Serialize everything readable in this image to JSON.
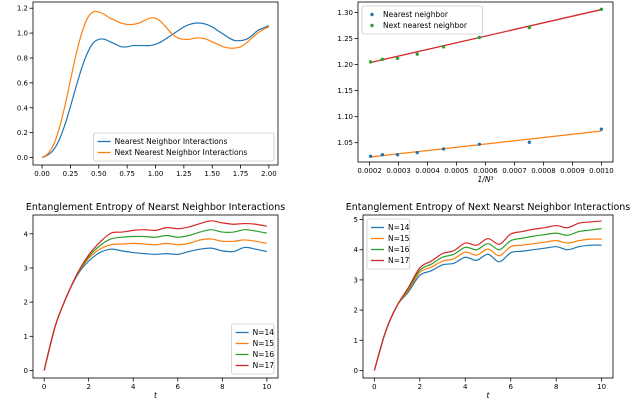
{
  "chart_data": [
    {
      "type": "line",
      "title": "",
      "xlabel": "",
      "ylabel": "",
      "xlim": [
        -0.08,
        2.08
      ],
      "ylim": [
        -0.06,
        1.25
      ],
      "xticks": [
        0.0,
        0.25,
        0.5,
        0.75,
        1.0,
        1.25,
        1.5,
        1.75,
        2.0
      ],
      "xtick_labels": [
        "0.00",
        "0.25",
        "0.50",
        "0.75",
        "1.00",
        "1.25",
        "1.50",
        "1.75",
        "2.00"
      ],
      "yticks": [
        0.0,
        0.2,
        0.4,
        0.6,
        0.8,
        1.0,
        1.2
      ],
      "ytick_labels": [
        "0.0",
        "0.2",
        "0.4",
        "0.6",
        "0.8",
        "1.0",
        "1.2"
      ],
      "legend_position": "lower-right",
      "series": [
        {
          "name": "Nearest Neighbor Interactions",
          "color": "#1f77b4",
          "x": [
            0.0,
            0.05,
            0.1,
            0.15,
            0.2,
            0.25,
            0.3,
            0.35,
            0.4,
            0.45,
            0.5,
            0.55,
            0.6,
            0.65,
            0.7,
            0.75,
            0.8,
            0.85,
            0.9,
            0.95,
            1.0,
            1.05,
            1.1,
            1.15,
            1.2,
            1.25,
            1.3,
            1.35,
            1.4,
            1.45,
            1.5,
            1.55,
            1.6,
            1.65,
            1.7,
            1.75,
            1.8,
            1.85,
            1.9,
            1.95,
            2.0
          ],
          "y": [
            0.0,
            0.02,
            0.06,
            0.14,
            0.26,
            0.41,
            0.57,
            0.72,
            0.84,
            0.92,
            0.95,
            0.95,
            0.93,
            0.91,
            0.89,
            0.89,
            0.9,
            0.9,
            0.9,
            0.9,
            0.91,
            0.93,
            0.96,
            0.99,
            1.02,
            1.05,
            1.07,
            1.08,
            1.08,
            1.07,
            1.05,
            1.02,
            0.99,
            0.96,
            0.94,
            0.94,
            0.95,
            0.98,
            1.02,
            1.04,
            1.06
          ]
        },
        {
          "name": "Next Nearest Neighbor Interactions",
          "color": "#ff7f0e",
          "x": [
            0.0,
            0.05,
            0.1,
            0.15,
            0.2,
            0.25,
            0.3,
            0.35,
            0.4,
            0.45,
            0.5,
            0.55,
            0.6,
            0.65,
            0.7,
            0.75,
            0.8,
            0.85,
            0.9,
            0.95,
            1.0,
            1.05,
            1.1,
            1.15,
            1.2,
            1.25,
            1.3,
            1.35,
            1.4,
            1.45,
            1.5,
            1.55,
            1.6,
            1.65,
            1.7,
            1.75,
            1.8,
            1.85,
            1.9,
            1.95,
            2.0
          ],
          "y": [
            0.0,
            0.03,
            0.1,
            0.23,
            0.41,
            0.62,
            0.83,
            1.0,
            1.12,
            1.17,
            1.17,
            1.15,
            1.12,
            1.1,
            1.08,
            1.07,
            1.07,
            1.08,
            1.1,
            1.12,
            1.12,
            1.09,
            1.04,
            0.99,
            0.96,
            0.95,
            0.95,
            0.96,
            0.96,
            0.95,
            0.93,
            0.91,
            0.89,
            0.88,
            0.88,
            0.89,
            0.92,
            0.96,
            1.0,
            1.03,
            1.05
          ]
        }
      ]
    },
    {
      "type": "scatter",
      "title": "",
      "xlabel": "1/N³",
      "ylabel": "",
      "xlim": [
        0.00016,
        0.00104
      ],
      "ylim": [
        1.013,
        1.32
      ],
      "xticks": [
        0.0002,
        0.0003,
        0.0004,
        0.0005,
        0.0006,
        0.0007,
        0.0008,
        0.0009,
        0.001
      ],
      "xtick_labels": [
        "0.0002",
        "0.0003",
        "0.0004",
        "0.0005",
        "0.0006",
        "0.0007",
        "0.0008",
        "0.0009",
        "0.0010"
      ],
      "yticks": [
        1.05,
        1.1,
        1.15,
        1.2,
        1.25,
        1.3
      ],
      "ytick_labels": [
        "1.05",
        "1.10",
        "1.15",
        "1.20",
        "1.25",
        "1.30"
      ],
      "legend_position": "upper-left",
      "series": [
        {
          "name": "Nearest neighbor",
          "color": "#1f77b4",
          "x": [
            0.0002035,
            0.0002441,
            0.0002963,
            0.0003644,
            0.0004552,
            0.0005787,
            0.0007513,
            0.001
          ],
          "y": [
            1.024,
            1.027,
            1.027,
            1.031,
            1.038,
            1.047,
            1.051,
            1.076
          ]
        },
        {
          "name": "Next nearest neighbor",
          "color": "#2ca02c",
          "x": [
            0.0002035,
            0.0002441,
            0.0002963,
            0.0003644,
            0.0004552,
            0.0005787,
            0.0007513,
            0.001
          ],
          "y": [
            1.205,
            1.21,
            1.212,
            1.22,
            1.234,
            1.252,
            1.271,
            1.306
          ]
        }
      ],
      "fit_lines": [
        {
          "color": "#ff7f0e",
          "x": [
            0.0002,
            0.001
          ],
          "y": [
            1.0225,
            1.0725
          ]
        },
        {
          "color": "#d62728",
          "x": [
            0.0002,
            0.001
          ],
          "y": [
            1.2035,
            1.3055
          ]
        }
      ]
    },
    {
      "type": "line",
      "title": "Entanglement Entropy of Nearst Neighbor Interactions",
      "xlabel": "t",
      "ylabel": "",
      "xlim": [
        -0.5,
        10.5
      ],
      "ylim": [
        -0.22,
        4.55
      ],
      "xticks": [
        0,
        2,
        4,
        6,
        8,
        10
      ],
      "xtick_labels": [
        "0",
        "2",
        "4",
        "6",
        "8",
        "10"
      ],
      "yticks": [
        0,
        1,
        2,
        3,
        4
      ],
      "ytick_labels": [
        "0",
        "1",
        "2",
        "3",
        "4"
      ],
      "legend_position": "lower-right",
      "series": [
        {
          "name": "N=14",
          "color": "#1f77b4",
          "x": [
            0,
            0.5,
            1,
            1.5,
            2,
            2.5,
            3,
            3.5,
            4,
            4.5,
            5,
            5.5,
            6,
            6.5,
            7,
            7.5,
            8,
            8.5,
            9,
            9.5,
            10
          ],
          "y": [
            0.0,
            1.3,
            2.15,
            2.8,
            3.2,
            3.45,
            3.55,
            3.5,
            3.45,
            3.42,
            3.4,
            3.42,
            3.4,
            3.48,
            3.55,
            3.58,
            3.5,
            3.48,
            3.6,
            3.55,
            3.48
          ]
        },
        {
          "name": "N=15",
          "color": "#ff7f0e",
          "x": [
            0,
            0.5,
            1,
            1.5,
            2,
            2.5,
            3,
            3.5,
            4,
            4.5,
            5,
            5.5,
            6,
            6.5,
            7,
            7.5,
            8,
            8.5,
            9,
            9.5,
            10
          ],
          "y": [
            0.0,
            1.3,
            2.15,
            2.82,
            3.28,
            3.55,
            3.68,
            3.7,
            3.72,
            3.7,
            3.68,
            3.72,
            3.68,
            3.72,
            3.82,
            3.85,
            3.78,
            3.78,
            3.82,
            3.78,
            3.72
          ]
        },
        {
          "name": "N=16",
          "color": "#2ca02c",
          "x": [
            0,
            0.5,
            1,
            1.5,
            2,
            2.5,
            3,
            3.5,
            4,
            4.5,
            5,
            5.5,
            6,
            6.5,
            7,
            7.5,
            8,
            8.5,
            9,
            9.5,
            10
          ],
          "y": [
            0.0,
            1.3,
            2.15,
            2.83,
            3.33,
            3.65,
            3.85,
            3.9,
            3.92,
            3.92,
            3.9,
            3.95,
            3.9,
            3.95,
            4.05,
            4.12,
            4.05,
            4.05,
            4.12,
            4.08,
            4.02
          ]
        },
        {
          "name": "N=17",
          "color": "#d62728",
          "x": [
            0,
            0.5,
            1,
            1.5,
            2,
            2.5,
            3,
            3.5,
            4,
            4.5,
            5,
            5.5,
            6,
            6.5,
            7,
            7.5,
            8,
            8.5,
            9,
            9.5,
            10
          ],
          "y": [
            0.0,
            1.3,
            2.15,
            2.85,
            3.38,
            3.75,
            4.02,
            4.05,
            4.1,
            4.12,
            4.1,
            4.18,
            4.15,
            4.2,
            4.3,
            4.38,
            4.32,
            4.28,
            4.3,
            4.28,
            4.22
          ]
        }
      ]
    },
    {
      "type": "line",
      "title": "Entanglement Entropy of Next Nearst Neighbor Interactions",
      "xlabel": "t",
      "ylabel": "",
      "xlim": [
        -0.5,
        10.5
      ],
      "ylim": [
        -0.25,
        5.15
      ],
      "xticks": [
        0,
        2,
        4,
        6,
        8,
        10
      ],
      "xtick_labels": [
        "0",
        "2",
        "4",
        "6",
        "8",
        "10"
      ],
      "yticks": [
        0,
        1,
        2,
        3,
        4,
        5
      ],
      "ytick_labels": [
        "0",
        "1",
        "2",
        "3",
        "4",
        "5"
      ],
      "legend_position": "upper-left",
      "series": [
        {
          "name": "N=14",
          "color": "#1f77b4",
          "x": [
            0,
            0.5,
            1,
            1.5,
            2,
            2.5,
            3,
            3.5,
            4,
            4.5,
            5,
            5.5,
            6,
            6.5,
            7,
            7.5,
            8,
            8.5,
            9,
            9.5,
            10
          ],
          "y": [
            0.0,
            1.3,
            2.15,
            2.6,
            3.15,
            3.3,
            3.5,
            3.55,
            3.75,
            3.65,
            3.85,
            3.6,
            3.9,
            3.95,
            4.0,
            4.05,
            4.1,
            4.0,
            4.1,
            4.15,
            4.15
          ]
        },
        {
          "name": "N=15",
          "color": "#ff7f0e",
          "x": [
            0,
            0.5,
            1,
            1.5,
            2,
            2.5,
            3,
            3.5,
            4,
            4.5,
            5,
            5.5,
            6,
            6.5,
            7,
            7.5,
            8,
            8.5,
            9,
            9.5,
            10
          ],
          "y": [
            0.0,
            1.3,
            2.15,
            2.65,
            3.25,
            3.42,
            3.62,
            3.7,
            3.92,
            3.82,
            4.02,
            3.8,
            4.1,
            4.15,
            4.2,
            4.25,
            4.3,
            4.22,
            4.3,
            4.35,
            4.35
          ]
        },
        {
          "name": "N=16",
          "color": "#2ca02c",
          "x": [
            0,
            0.5,
            1,
            1.5,
            2,
            2.5,
            3,
            3.5,
            4,
            4.5,
            5,
            5.5,
            6,
            6.5,
            7,
            7.5,
            8,
            8.5,
            9,
            9.5,
            10
          ],
          "y": [
            0.0,
            1.3,
            2.15,
            2.7,
            3.32,
            3.52,
            3.75,
            3.85,
            4.08,
            4.0,
            4.2,
            4.0,
            4.3,
            4.38,
            4.45,
            4.5,
            4.55,
            4.48,
            4.6,
            4.65,
            4.7
          ]
        },
        {
          "name": "N=17",
          "color": "#d62728",
          "x": [
            0,
            0.5,
            1,
            1.5,
            2,
            2.5,
            3,
            3.5,
            4,
            4.5,
            5,
            5.5,
            6,
            6.5,
            7,
            7.5,
            8,
            8.5,
            9,
            9.5,
            10
          ],
          "y": [
            0.0,
            1.3,
            2.15,
            2.75,
            3.4,
            3.62,
            3.87,
            3.97,
            4.22,
            4.15,
            4.37,
            4.18,
            4.52,
            4.6,
            4.68,
            4.73,
            4.8,
            4.73,
            4.88,
            4.92,
            4.95
          ]
        }
      ]
    }
  ]
}
